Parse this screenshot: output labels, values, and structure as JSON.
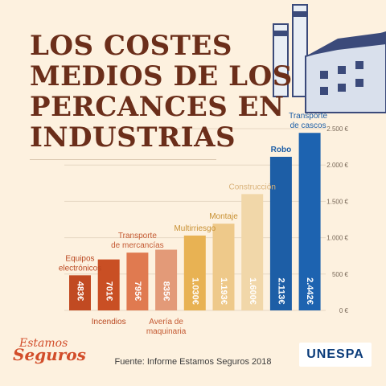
{
  "title_lines": [
    "LOS COSTES",
    "MEDIOS DE LOS",
    "PERCANCES EN",
    "INDUSTRIAS"
  ],
  "source": "Fuente: Informe Estamos Seguros 2018",
  "brand": {
    "logo_line1": "Estamos",
    "logo_line2": "Seguros",
    "partner": "UNESPA"
  },
  "chart_data": {
    "type": "bar",
    "categories": [
      [
        "Equipos",
        "electrónicos"
      ],
      [
        "Incendios"
      ],
      [
        "Transporte",
        "de mercancías"
      ],
      [
        "Avería de",
        "maquinaria"
      ],
      [
        "Multirriesgo"
      ],
      [
        "Montaje"
      ],
      [
        "Construcción"
      ],
      [
        "Robo"
      ],
      [
        "Transporte",
        "de cascos"
      ]
    ],
    "values": [
      483,
      701,
      795,
      835,
      1030,
      1193,
      1600,
      2113,
      2442
    ],
    "value_labels": [
      "483€",
      "701€",
      "795€",
      "835€",
      "1.030€",
      "1.193€",
      "1.600€",
      "2.113€",
      "2.442€"
    ],
    "colors": [
      "#c14a22",
      "#c94f24",
      "#e07a50",
      "#e39a78",
      "#e8b253",
      "#eec98a",
      "#f1d7a9",
      "#1d5ea6",
      "#1d63b0"
    ],
    "label_colors": [
      "#b9461f",
      "#b9461f",
      "#c45a33",
      "#c45a33",
      "#c89032",
      "#c89032",
      "#d9b27a",
      "#1d5ea6",
      "#1d5ea6"
    ],
    "label_positions": [
      "above",
      "below",
      "above",
      "below",
      "above",
      "above",
      "above",
      "above",
      "above"
    ],
    "ylim": [
      0,
      2500
    ],
    "yticks": [
      0,
      500,
      1000,
      1500,
      2000,
      2500
    ],
    "ytick_labels": [
      "0 €",
      "500 €",
      "1.000 €",
      "1.500 €",
      "2.000 €",
      "2.500 €"
    ],
    "grid": true
  }
}
